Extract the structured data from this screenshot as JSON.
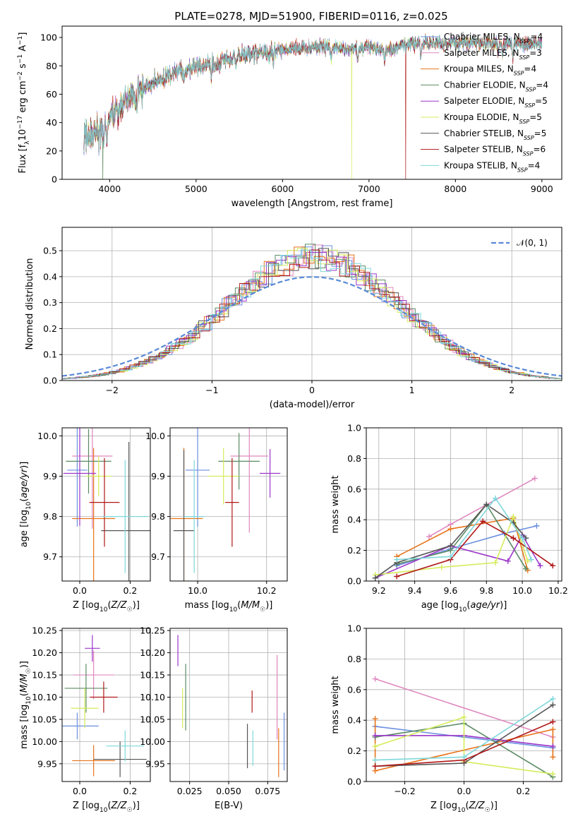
{
  "figure": {
    "title": "PLATE=0278, MJD=51900, FIBERID=0116, z=0.025"
  },
  "models": [
    {
      "name": "Chabrier MILES",
      "nssp": 4,
      "color": "#6b8fe0"
    },
    {
      "name": "Salpeter MILES",
      "nssp": 3,
      "color": "#e088c0"
    },
    {
      "name": "Kroupa MILES",
      "nssp": 4,
      "color": "#e8741a"
    },
    {
      "name": "Chabrier ELODIE",
      "nssp": 4,
      "color": "#5b8a63"
    },
    {
      "name": "Salpeter ELODIE",
      "nssp": 5,
      "color": "#9b35c9"
    },
    {
      "name": "Kroupa ELODIE",
      "nssp": 5,
      "color": "#d4ec5a"
    },
    {
      "name": "Chabrier STELIB",
      "nssp": 5,
      "color": "#555555"
    },
    {
      "name": "Salpeter STELIB",
      "nssp": 6,
      "color": "#b01818"
    },
    {
      "name": "Kroupa STELIB",
      "nssp": 4,
      "color": "#7fd8dc"
    }
  ],
  "chart_data": [
    {
      "id": "spectrum",
      "type": "line",
      "xlabel": "wavelength [Angstrom, rest frame]",
      "ylabel": "Flux [f_λ10^-17 erg cm^-2 s^-1 A^-1]",
      "xlim": [
        3450,
        9230
      ],
      "ylim": [
        0,
        108
      ],
      "xticks": [
        4000,
        5000,
        6000,
        7000,
        8000,
        9000
      ],
      "yticks": [
        0,
        20,
        40,
        60,
        80,
        100
      ],
      "grid": false,
      "legend": "top-right",
      "continuum_anchors": [
        [
          3700,
          29
        ],
        [
          3900,
          33
        ],
        [
          4000,
          44
        ],
        [
          4200,
          56
        ],
        [
          4500,
          68
        ],
        [
          4800,
          76
        ],
        [
          5200,
          82
        ],
        [
          5600,
          88
        ],
        [
          6000,
          91
        ],
        [
          6500,
          94
        ],
        [
          6800,
          92
        ],
        [
          7000,
          93
        ],
        [
          7200,
          90
        ],
        [
          7400,
          95
        ],
        [
          7600,
          96
        ],
        [
          8000,
          96
        ],
        [
          8500,
          96
        ],
        [
          9000,
          95
        ]
      ],
      "absorption_features": [
        [
          3934,
          14
        ],
        [
          3969,
          12
        ],
        [
          4102,
          6
        ],
        [
          4304,
          10
        ],
        [
          4861,
          6
        ],
        [
          5175,
          10
        ],
        [
          5270,
          6
        ],
        [
          5893,
          10
        ],
        [
          6563,
          8
        ],
        [
          6870,
          10
        ],
        [
          7180,
          8
        ],
        [
          7600,
          10
        ],
        [
          8498,
          6
        ],
        [
          8542,
          8
        ],
        [
          8662,
          8
        ]
      ],
      "dropouts": [
        {
          "model": 3,
          "x": 3920
        },
        {
          "model": 5,
          "x": 6800
        },
        {
          "model": 7,
          "x": 7425
        }
      ]
    },
    {
      "id": "residuals",
      "type": "histogram",
      "xlabel": "(data-model)/error",
      "ylabel": "Normed distribution",
      "xlim": [
        -2.5,
        2.5
      ],
      "ylim": [
        0,
        0.59
      ],
      "xticks": [
        -2,
        -1,
        0,
        1,
        2
      ],
      "yticks": [
        0.0,
        0.1,
        0.2,
        0.3,
        0.4,
        0.5
      ],
      "grid": true,
      "legend": "top-right",
      "reference_curve": {
        "name": "𝒩(0, 1)",
        "mean": 0,
        "sigma": 1,
        "color": "#5a8ad8"
      },
      "bin_width": 0.1,
      "profile": {
        "sigma": 0.86,
        "peak": 0.475,
        "mean": 0.02
      }
    },
    {
      "id": "age_vs_z",
      "type": "errorbar",
      "xlabel": "Z [log10(Z/Z☉)]",
      "ylabel": "age  [log10(age/yr)]",
      "xlim": [
        -0.07,
        0.28
      ],
      "ylim": [
        9.64,
        10.02
      ],
      "xticks": [
        0.0,
        0.2
      ],
      "yticks": [
        9.7,
        9.8,
        9.9,
        10.0
      ],
      "grid": true,
      "points": [
        {
          "model": 0,
          "x": -0.01,
          "y": 9.915,
          "xerr": 0.04,
          "yerr": 0.14
        },
        {
          "model": 1,
          "x": 0.05,
          "y": 9.95,
          "xerr": 0.08,
          "yerr": 0.18
        },
        {
          "model": 2,
          "x": 0.055,
          "y": 9.795,
          "xerr": 0.085,
          "yerr": 0.175
        },
        {
          "model": 3,
          "x": 0.035,
          "y": 9.937,
          "xerr": 0.09,
          "yerr": 0.08
        },
        {
          "model": 4,
          "x": 0.0,
          "y": 9.907,
          "xerr": 0.065,
          "yerr": 0.13
        },
        {
          "model": 5,
          "x": 0.075,
          "y": 9.9,
          "xerr": 0.05,
          "yerr": 0.05
        },
        {
          "model": 6,
          "x": 0.195,
          "y": 9.765,
          "xerr": 0.11,
          "yerr": 0.22
        },
        {
          "model": 7,
          "x": 0.098,
          "y": 9.835,
          "xerr": 0.06,
          "yerr": 0.11
        },
        {
          "model": 8,
          "x": 0.18,
          "y": 9.8,
          "xerr": 0.09,
          "yerr": 0.14
        }
      ]
    },
    {
      "id": "age_vs_mass",
      "type": "errorbar",
      "xlabel": "mass [log10(M/M☉)]",
      "ylabel": "",
      "xlim": [
        9.92,
        10.26
      ],
      "ylim": [
        9.64,
        10.02
      ],
      "xticks": [
        10.0,
        10.2
      ],
      "yticks": [
        9.7,
        9.8,
        9.9,
        10.0
      ],
      "grid": true,
      "points": [
        {
          "model": 0,
          "x": 10.0,
          "y": 9.915,
          "xerr": 0.035,
          "yerr": 0.14
        },
        {
          "model": 1,
          "x": 10.15,
          "y": 9.95,
          "xerr": 0.055,
          "yerr": 0.19
        },
        {
          "model": 2,
          "x": 9.96,
          "y": 9.795,
          "xerr": 0.055,
          "yerr": 0.175
        },
        {
          "model": 3,
          "x": 10.12,
          "y": 9.937,
          "xerr": 0.06,
          "yerr": 0.07
        },
        {
          "model": 4,
          "x": 10.21,
          "y": 9.907,
          "xerr": 0.03,
          "yerr": 0.06
        },
        {
          "model": 5,
          "x": 10.075,
          "y": 9.9,
          "xerr": 0.045,
          "yerr": 0.07
        },
        {
          "model": 6,
          "x": 9.96,
          "y": 9.765,
          "xerr": 0.03,
          "yerr": 0.2
        },
        {
          "model": 7,
          "x": 10.1,
          "y": 9.835,
          "xerr": 0.02,
          "yerr": 0.11
        },
        {
          "model": 8,
          "x": 9.99,
          "y": 9.8,
          "xerr": 0.03,
          "yerr": 0.14
        }
      ]
    },
    {
      "id": "mass_weight_vs_age",
      "type": "line",
      "xlabel": "age  [log10(age/yr)]",
      "ylabel": "mass weight",
      "xlim": [
        9.13,
        10.22
      ],
      "ylim": [
        0,
        1.0
      ],
      "xticks": [
        9.2,
        9.4,
        9.6,
        9.8,
        10.0,
        10.2
      ],
      "yticks": [
        0.0,
        0.2,
        0.4,
        0.6,
        0.8,
        1.0
      ],
      "grid": true,
      "series": [
        {
          "model": 0,
          "x": [
            9.3,
            9.6,
            9.9,
            10.08
          ],
          "y": [
            0.1,
            0.21,
            0.31,
            0.36
          ]
        },
        {
          "model": 1,
          "x": [
            9.48,
            9.6,
            10.07
          ],
          "y": [
            0.29,
            0.37,
            0.67
          ]
        },
        {
          "model": 2,
          "x": [
            9.3,
            9.6,
            9.95,
            10.03
          ],
          "y": [
            0.16,
            0.34,
            0.41,
            0.07
          ]
        },
        {
          "model": 3,
          "x": [
            9.3,
            9.6,
            9.8,
            10.02
          ],
          "y": [
            0.11,
            0.2,
            0.5,
            0.08
          ]
        },
        {
          "model": 4,
          "x": [
            9.18,
            9.6,
            9.92,
            10.0,
            10.1
          ],
          "y": [
            0.02,
            0.23,
            0.13,
            0.3,
            0.1
          ]
        },
        {
          "model": 5,
          "x": [
            9.18,
            9.55,
            9.85,
            9.95,
            10.03
          ],
          "y": [
            0.04,
            0.09,
            0.12,
            0.42,
            0.13
          ]
        },
        {
          "model": 6,
          "x": [
            9.18,
            9.3,
            9.6,
            9.8,
            9.95,
            10.02
          ],
          "y": [
            0.02,
            0.12,
            0.23,
            0.5,
            0.38,
            0.28
          ]
        },
        {
          "model": 7,
          "x": [
            9.3,
            9.6,
            9.78,
            9.95,
            10.17
          ],
          "y": [
            0.03,
            0.14,
            0.39,
            0.28,
            0.1
          ]
        },
        {
          "model": 8,
          "x": [
            9.3,
            9.6,
            9.85,
            10.0,
            10.05
          ],
          "y": [
            0.14,
            0.16,
            0.54,
            0.28,
            0.14
          ]
        }
      ]
    },
    {
      "id": "mass_vs_z",
      "type": "errorbar",
      "xlabel": "Z [log10(Z/Z☉)]",
      "ylabel": "mass [log10(M/M☉)]",
      "xlim": [
        -0.07,
        0.28
      ],
      "ylim": [
        9.91,
        10.255
      ],
      "xticks": [
        0.0,
        0.2
      ],
      "yticks": [
        9.95,
        10.0,
        10.05,
        10.1,
        10.15,
        10.2,
        10.25
      ],
      "grid": true,
      "points": [
        {
          "model": 0,
          "x": -0.01,
          "y": 10.035,
          "xerr": 0.085,
          "yerr": 0.03
        },
        {
          "model": 1,
          "x": 0.055,
          "y": 10.15,
          "xerr": 0.08,
          "yerr": 0.055
        },
        {
          "model": 2,
          "x": 0.055,
          "y": 9.957,
          "xerr": 0.085,
          "yerr": 0.035
        },
        {
          "model": 3,
          "x": 0.025,
          "y": 10.12,
          "xerr": 0.085,
          "yerr": 0.055
        },
        {
          "model": 4,
          "x": 0.05,
          "y": 10.21,
          "xerr": 0.03,
          "yerr": 0.03
        },
        {
          "model": 5,
          "x": 0.02,
          "y": 10.075,
          "xerr": 0.055,
          "yerr": 0.045
        },
        {
          "model": 6,
          "x": 0.16,
          "y": 9.96,
          "xerr": 0.105,
          "yerr": 0.04
        },
        {
          "model": 7,
          "x": 0.095,
          "y": 10.1,
          "xerr": 0.055,
          "yerr": 0.035
        },
        {
          "model": 8,
          "x": 0.18,
          "y": 9.99,
          "xerr": 0.075,
          "yerr": 0.035
        }
      ]
    },
    {
      "id": "mass_vs_ebv",
      "type": "errorbar",
      "xlabel": "E(B-V)",
      "ylabel": "",
      "xlim": [
        0.0125,
        0.0875
      ],
      "ylim": [
        9.91,
        10.255
      ],
      "xticks": [
        0.025,
        0.05,
        0.075
      ],
      "yticks": [
        9.95,
        10.0,
        10.05,
        10.1,
        10.15,
        10.2,
        10.25
      ],
      "grid": true,
      "points": [
        {
          "model": 0,
          "x": 0.0855,
          "y": 10.0,
          "xerr": 0,
          "yerr": 0.065
        },
        {
          "model": 1,
          "x": 0.081,
          "y": 10.1,
          "xerr": 0,
          "yerr": 0.095
        },
        {
          "model": 2,
          "x": 0.082,
          "y": 9.975,
          "xerr": 0,
          "yerr": 0.055
        },
        {
          "model": 3,
          "x": 0.0225,
          "y": 10.1,
          "xerr": 0,
          "yerr": 0.075
        },
        {
          "model": 4,
          "x": 0.0175,
          "y": 10.205,
          "xerr": 0,
          "yerr": 0.035
        },
        {
          "model": 5,
          "x": 0.0205,
          "y": 10.075,
          "xerr": 0,
          "yerr": 0.045
        },
        {
          "model": 6,
          "x": 0.062,
          "y": 9.99,
          "xerr": 0,
          "yerr": 0.05
        },
        {
          "model": 7,
          "x": 0.065,
          "y": 10.09,
          "xerr": 0,
          "yerr": 0.025
        },
        {
          "model": 8,
          "x": 0.0655,
          "y": 9.985,
          "xerr": 0,
          "yerr": 0.04
        }
      ]
    },
    {
      "id": "mass_weight_vs_z",
      "type": "line",
      "xlabel": "Z [log10(Z/Z☉)]",
      "ylabel": "mass weight",
      "xlim": [
        -0.33,
        0.33
      ],
      "ylim": [
        0,
        1.0
      ],
      "xticks": [
        -0.2,
        0.0,
        0.2
      ],
      "yticks": [
        0.0,
        0.2,
        0.4,
        0.6,
        0.8,
        1.0
      ],
      "grid": true,
      "series": [
        {
          "model": 0,
          "x": [
            -0.3,
            0.0,
            0.3
          ],
          "y": [
            0.36,
            0.29,
            0.22
          ]
        },
        {
          "model": 1,
          "x": [
            -0.3,
            0.3
          ],
          "y": [
            0.67,
            0.29
          ]
        },
        {
          "model": 2,
          "x": [
            -0.3,
            -0.3,
            0.3,
            0.3
          ],
          "y": [
            0.41,
            0.07,
            0.34,
            0.16
          ]
        },
        {
          "model": 3,
          "x": [
            -0.3,
            0.0,
            0.3
          ],
          "y": [
            0.29,
            0.38,
            0.03
          ]
        },
        {
          "model": 4,
          "x": [
            -0.3,
            0.0,
            0.3
          ],
          "y": [
            0.3,
            0.3,
            0.23
          ]
        },
        {
          "model": 5,
          "x": [
            -0.3,
            0.0,
            0.0,
            0.3
          ],
          "y": [
            0.23,
            0.42,
            0.13,
            0.05
          ]
        },
        {
          "model": 6,
          "x": [
            -0.3,
            0.0,
            0.3
          ],
          "y": [
            0.1,
            0.12,
            0.5
          ]
        },
        {
          "model": 7,
          "x": [
            -0.3,
            0.0,
            0.3
          ],
          "y": [
            0.1,
            0.14,
            0.39
          ]
        },
        {
          "model": 8,
          "x": [
            -0.3,
            0.0,
            0.3
          ],
          "y": [
            0.14,
            0.16,
            0.54
          ]
        }
      ]
    }
  ]
}
